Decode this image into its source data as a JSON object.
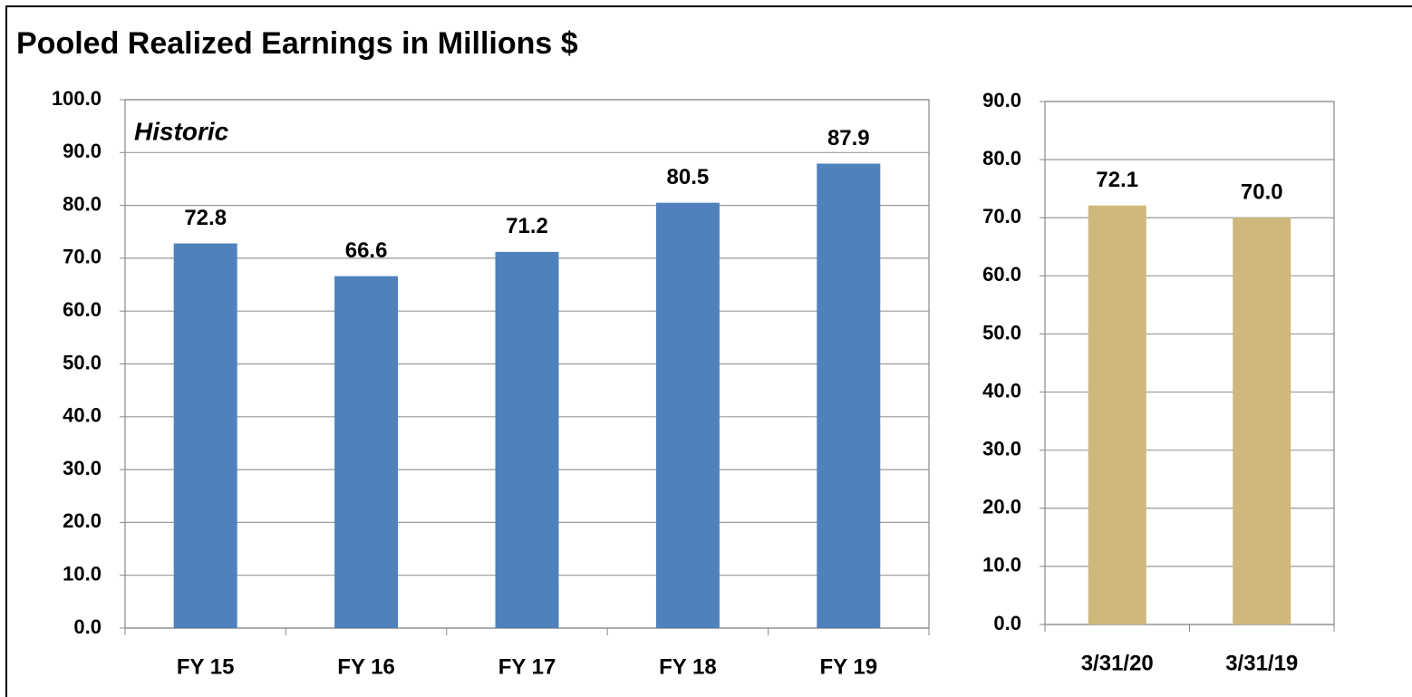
{
  "title": "Pooled Realized Earnings in Millions $",
  "chart_data": [
    {
      "type": "bar",
      "annotation": "Historic",
      "categories": [
        "FY 15",
        "FY 16",
        "FY 17",
        "FY 18",
        "FY 19"
      ],
      "values": [
        72.8,
        66.6,
        71.2,
        80.5,
        87.9
      ],
      "color": "#4f81bd",
      "ylim": [
        0,
        100
      ],
      "yticks": [
        {
          "value": 0,
          "label": "0.0"
        },
        {
          "value": 10,
          "label": "10.0"
        },
        {
          "value": 20,
          "label": "20.0"
        },
        {
          "value": 30,
          "label": "30.0"
        },
        {
          "value": 40,
          "label": "40.0"
        },
        {
          "value": 50,
          "label": "50.0"
        },
        {
          "value": 60,
          "label": "60.0"
        },
        {
          "value": 70,
          "label": "70.0"
        },
        {
          "value": 80,
          "label": "80.0"
        },
        {
          "value": 90,
          "label": "90.0"
        },
        {
          "value": 100,
          "label": "100.0"
        }
      ],
      "grid": true
    },
    {
      "type": "bar",
      "categories": [
        "3/31/20",
        "3/31/19"
      ],
      "values": [
        72.1,
        70.0
      ],
      "value_labels": [
        "72.1",
        "70.0"
      ],
      "color": "#cfb87c",
      "ylim": [
        0,
        90
      ],
      "yticks": [
        {
          "value": 0,
          "label": "0.0"
        },
        {
          "value": 10,
          "label": "10.0"
        },
        {
          "value": 20,
          "label": "20.0"
        },
        {
          "value": 30,
          "label": "30.0"
        },
        {
          "value": 40,
          "label": "40.0"
        },
        {
          "value": 50,
          "label": "50.0"
        },
        {
          "value": 60,
          "label": "60.0"
        },
        {
          "value": 70,
          "label": "70.0"
        },
        {
          "value": 80,
          "label": "80.0"
        },
        {
          "value": 90,
          "label": "90.0"
        }
      ],
      "grid": true
    }
  ]
}
